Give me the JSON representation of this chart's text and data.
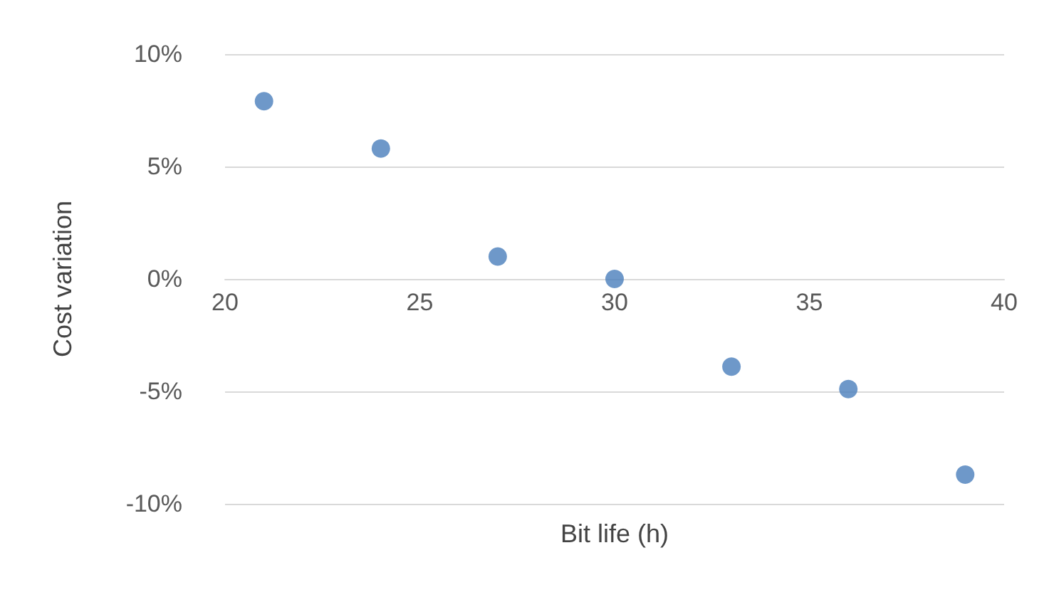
{
  "chart_data": {
    "type": "scatter",
    "xlabel": "Bit life (h)",
    "ylabel": "Cost variation",
    "x": [
      21,
      24,
      27,
      30,
      33,
      36,
      39
    ],
    "values": [
      7.9,
      5.8,
      1.0,
      0.0,
      -3.9,
      -4.9,
      -8.7
    ],
    "color": "#4a7ebb",
    "marker": "circle",
    "xlim": [
      20,
      40
    ],
    "xticks": [
      20,
      25,
      30,
      35,
      40
    ],
    "ylim": [
      -10,
      10
    ],
    "yticks": [
      {
        "value": -10,
        "label": "-10%"
      },
      {
        "value": -5,
        "label": "-5%"
      },
      {
        "value": 0,
        "label": "0%"
      },
      {
        "value": 5,
        "label": "5%"
      },
      {
        "value": 10,
        "label": "10%"
      }
    ],
    "grid": "y"
  }
}
